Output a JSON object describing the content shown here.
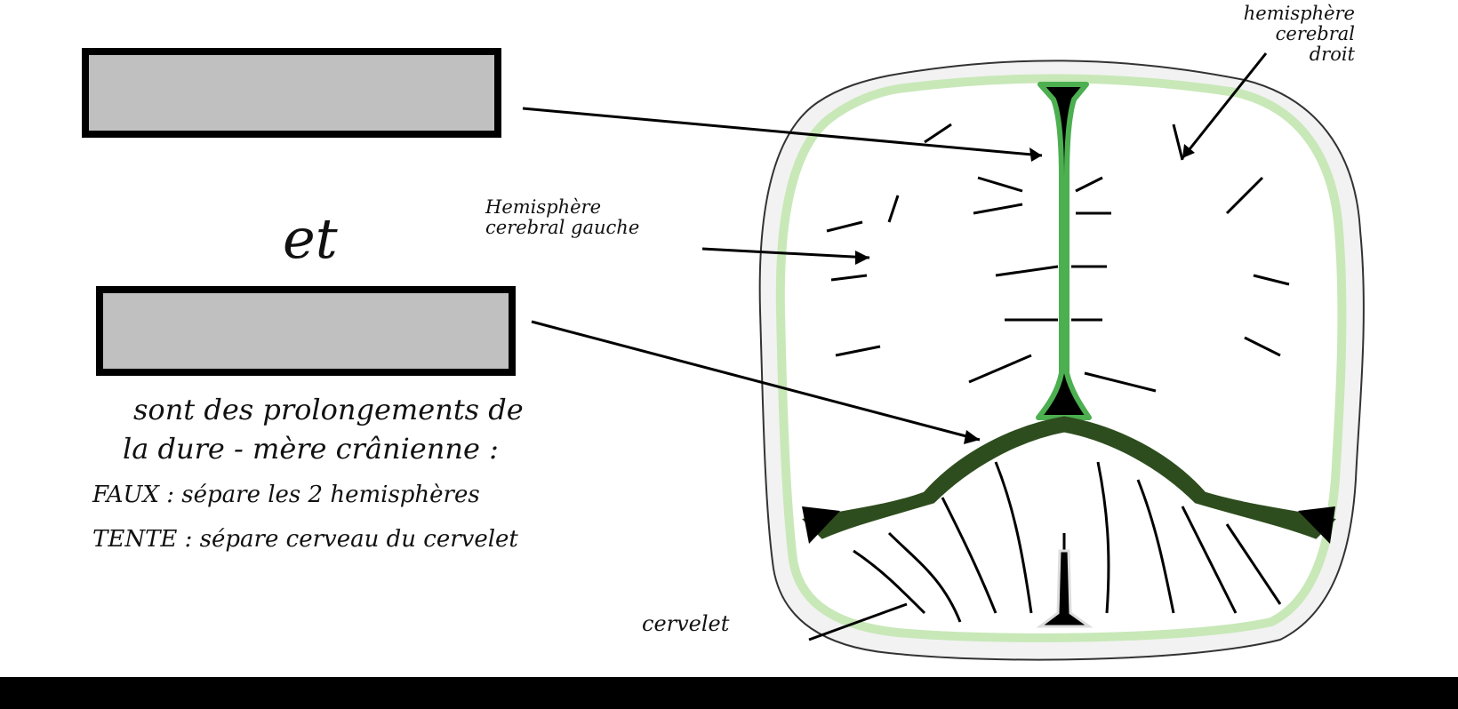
{
  "text": {
    "et": "et",
    "desc_line1": "sont des prolongements de",
    "desc_line2": "la dure - mère crânienne :",
    "faux_def": "FAUX : sépare les 2 hemisphères",
    "tente_def": "TENTE : sépare cerveau du cervelet"
  },
  "labels": {
    "left_hemisphere": [
      "Hemisphère",
      "cerebral gauche"
    ],
    "right_hemisphere": [
      "hemisphère",
      "cerebral",
      "droit"
    ],
    "cervelet": "cervelet"
  },
  "colors": {
    "dura_light_green": "#c8e8b8",
    "falx_green": "#4caf50",
    "tent_dark_green": "#2e4d1e",
    "answer_box_fill": "#c0c0c0"
  }
}
